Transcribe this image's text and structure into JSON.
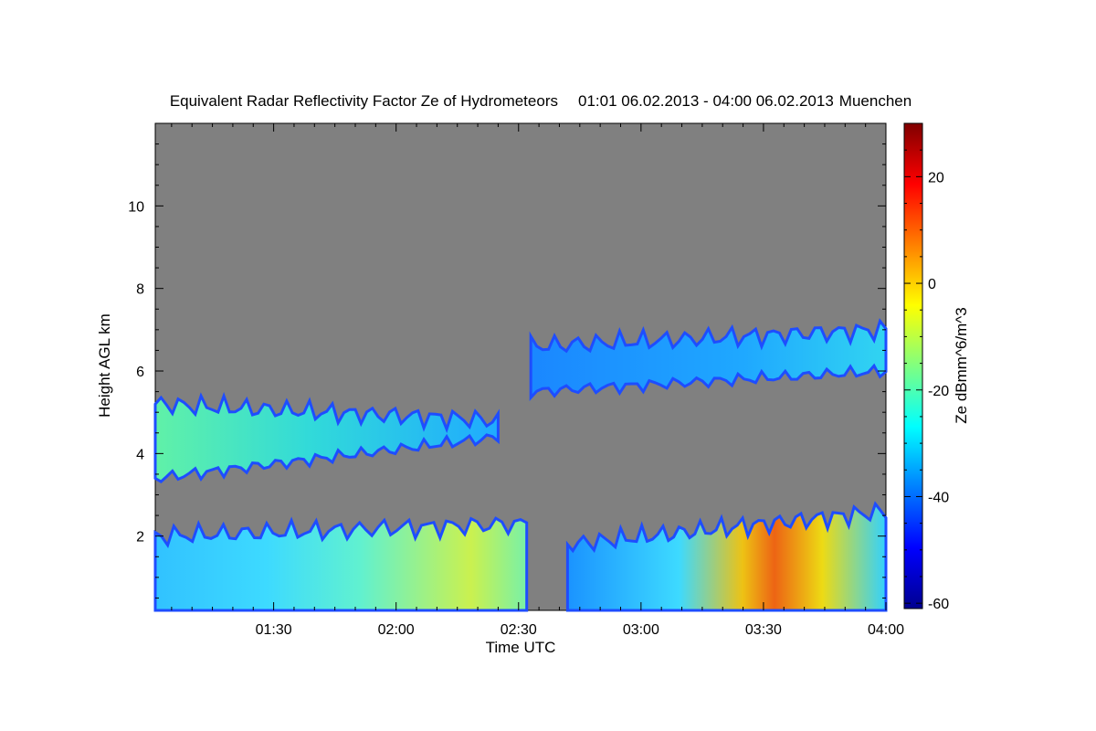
{
  "chart_data": {
    "type": "heatmap",
    "title": "Equivalent Radar Reflectivity Factor Ze of Hydrometeors",
    "period": "01:01 06.02.2013 - 04:00 06.02.2013",
    "location": "Muenchen",
    "xlabel": "Time UTC",
    "ylabel": "Height AGL km",
    "xlim": [
      "01:01",
      "04:00"
    ],
    "ylim": [
      0.2,
      12.0
    ],
    "x_ticks": [
      {
        "label": "01:30",
        "minutes": 90
      },
      {
        "label": "02:00",
        "minutes": 120
      },
      {
        "label": "02:30",
        "minutes": 150
      },
      {
        "label": "03:00",
        "minutes": 180
      },
      {
        "label": "03:30",
        "minutes": 210
      },
      {
        "label": "04:00",
        "minutes": 240
      }
    ],
    "y_ticks": [
      2,
      4,
      6,
      8,
      10
    ],
    "background_color": "#808080",
    "colorbar": {
      "label": "Ze dBmm^6/m^3",
      "range": [
        -61,
        30
      ],
      "ticks": [
        20,
        0,
        -20,
        -40,
        -60
      ],
      "colormap": "jet"
    },
    "echo_regions": [
      {
        "name": "upper-layer-west",
        "start": "01:01",
        "end": "02:25",
        "base_km": [
          3.4,
          4.4
        ],
        "top_km": [
          5.2,
          4.8
        ],
        "ze_max_dbz": -15
      },
      {
        "name": "upper-layer-east",
        "start": "02:33",
        "end": "04:00",
        "base_km": [
          5.5,
          6.0
        ],
        "top_km": [
          6.6,
          7.0
        ],
        "ze_max_dbz": -30
      },
      {
        "name": "low-precipitation-west",
        "start": "01:01",
        "end": "02:32",
        "base_km": [
          0.2,
          0.2
        ],
        "top_km": [
          2.0,
          2.3
        ],
        "ze_max_dbz": -5
      },
      {
        "name": "low-precipitation-east",
        "start": "02:42",
        "end": "04:00",
        "base_km": [
          0.2,
          0.2
        ],
        "top_km": [
          1.8,
          2.6
        ],
        "ze_max_dbz": 10
      }
    ]
  }
}
